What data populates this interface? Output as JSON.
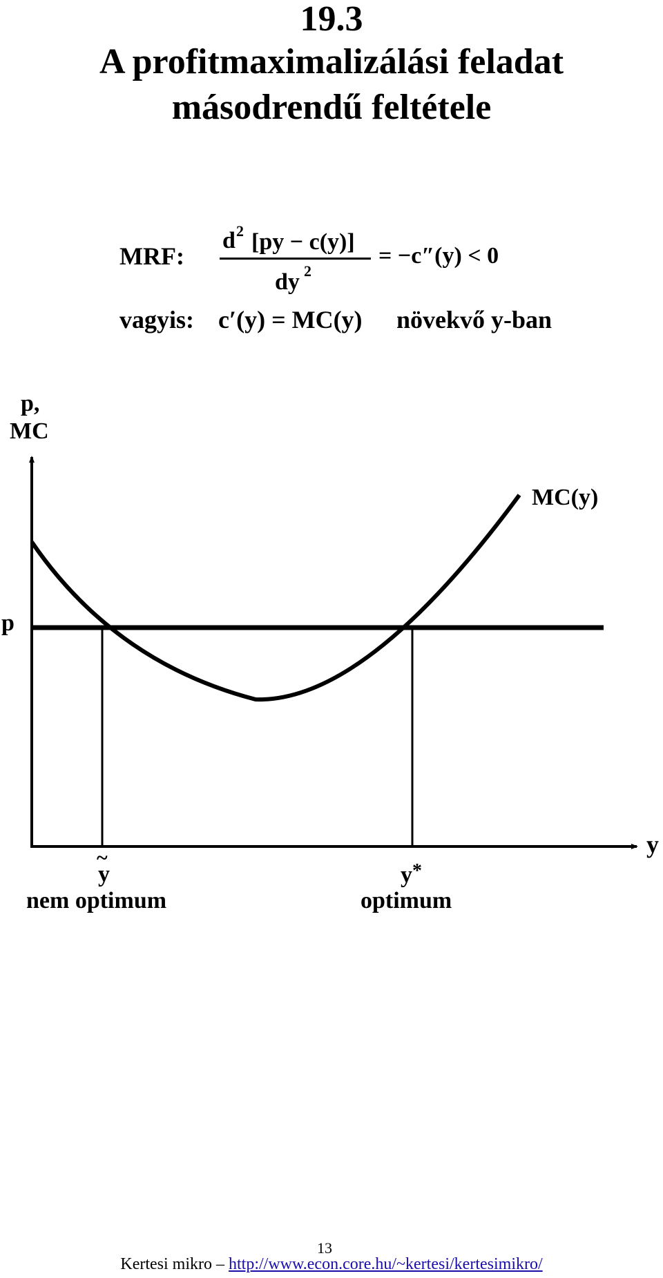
{
  "slide": {
    "number": "19.3",
    "title_line1": "A profitmaximalizálási feladat",
    "title_line2": "másodrendű feltétele"
  },
  "formula": {
    "label": "MRF:",
    "numerator_d": "d",
    "numerator_exp": "2",
    "numerator_expr": "[py − c(y)]",
    "denominator": "dy",
    "denominator_exp": "2",
    "rhs": "= −c″(y) < 0"
  },
  "condition": {
    "label": "vagyis:",
    "expr": "c′(y) = MC(y)",
    "text": "növekvő y-ban"
  },
  "diagram": {
    "y_axis_label_line1": "p,",
    "y_axis_label_line2": "MC",
    "x_axis_label": "y",
    "price_label": "p",
    "curve_label": "MC(y)",
    "tilde_y": "y",
    "tilde_y_caption": "nem optimum",
    "y_star": "y",
    "y_star_suffix": "*",
    "y_star_caption": "optimum"
  },
  "footer": {
    "page_number": "13",
    "text": "Kertesi mikro – ",
    "link": "http://www.econ.core.hu/~kertesi/kertesimikro/"
  }
}
